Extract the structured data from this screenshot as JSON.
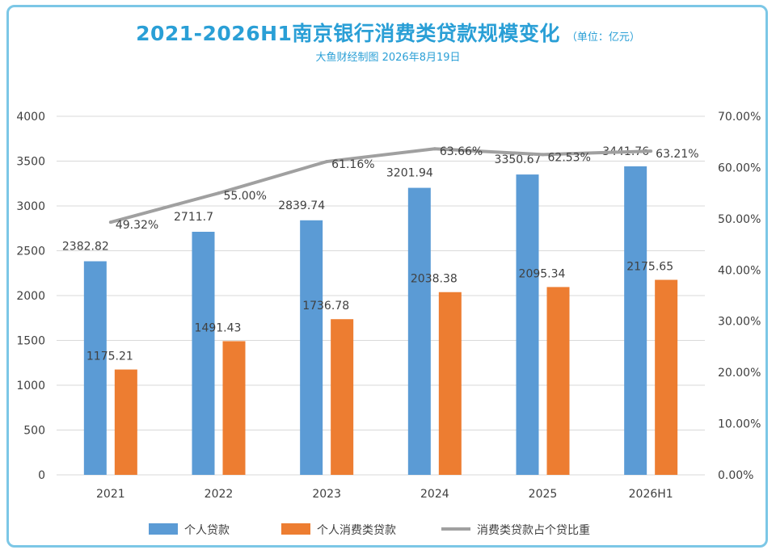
{
  "chart_data": {
    "type": "bar",
    "title": "2021-2026H1南京银行消费类贷款规模变化",
    "unit_note": "（单位：亿元）",
    "subtitle": "大鱼财经制图 2026年8月19日",
    "categories": [
      "2021",
      "2022",
      "2023",
      "2024",
      "2025",
      "2026H1"
    ],
    "series": [
      {
        "name": "个人贷款",
        "kind": "bar",
        "color": "#5b9bd5",
        "axis": "left",
        "values": [
          2382.82,
          2711.7,
          2839.74,
          3201.94,
          3350.67,
          3441.76
        ],
        "labels": [
          "2382.82",
          "2711.7",
          "2839.74",
          "3201.94",
          "3350.67",
          "3441.76"
        ]
      },
      {
        "name": "个人消费类贷款",
        "kind": "bar",
        "color": "#ed7d31",
        "axis": "left",
        "values": [
          1175.21,
          1491.43,
          1736.78,
          2038.38,
          2095.34,
          2175.65
        ],
        "labels": [
          "1175.21",
          "1491.43",
          "1736.78",
          "2038.38",
          "2095.34",
          "2175.65"
        ]
      },
      {
        "name": "消费类贷款占个贷比重",
        "kind": "line",
        "color": "#a0a0a0",
        "axis": "right",
        "values": [
          49.32,
          55.0,
          61.16,
          63.66,
          62.53,
          63.21
        ],
        "labels": [
          "49.32%",
          "55.00%",
          "61.16%",
          "63.66%",
          "62.53%",
          "63.21%"
        ]
      }
    ],
    "left_axis": {
      "min": 0,
      "max": 4000,
      "step": 500,
      "ticks": [
        "0",
        "500",
        "1000",
        "1500",
        "2000",
        "2500",
        "3000",
        "3500",
        "4000"
      ]
    },
    "right_axis": {
      "min": 0,
      "max": 70,
      "step": 10,
      "ticks": [
        "0.00%",
        "10.00%",
        "20.00%",
        "30.00%",
        "40.00%",
        "50.00%",
        "60.00%",
        "70.00%"
      ]
    },
    "grid": true,
    "legend_position": "bottom"
  }
}
